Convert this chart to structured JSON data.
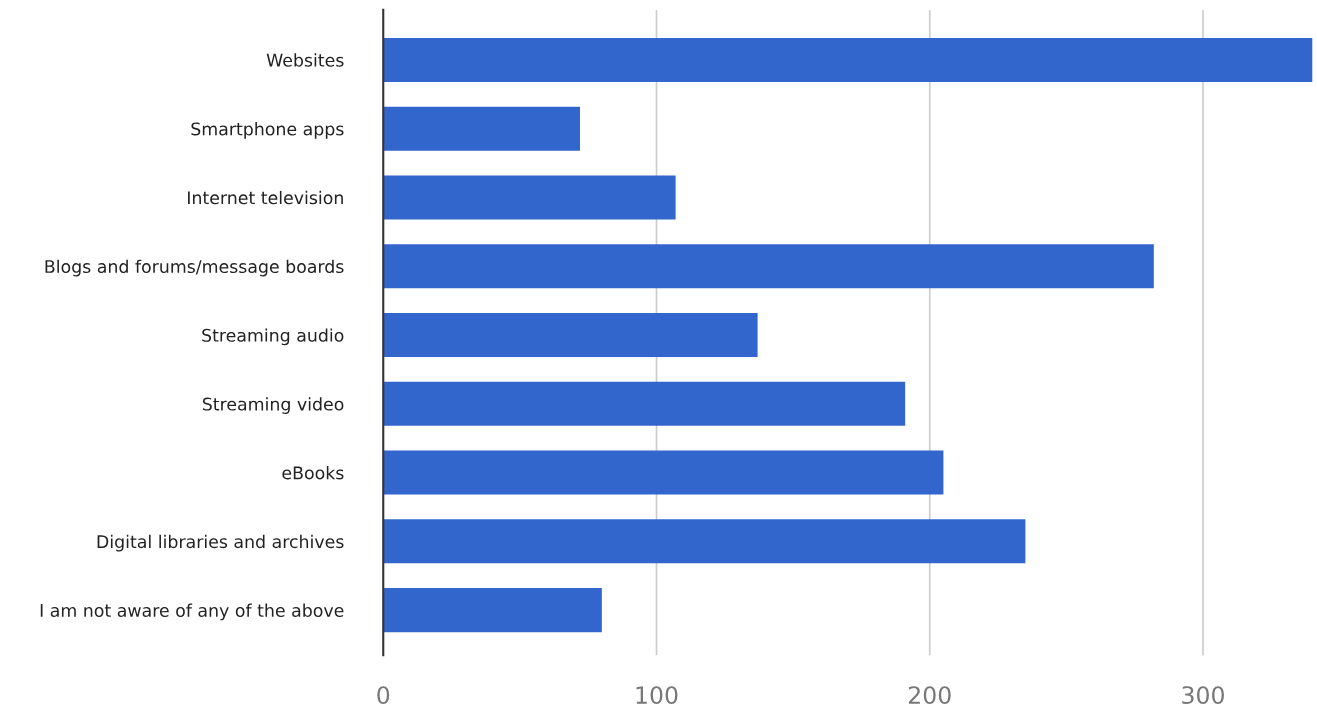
{
  "chart_data": {
    "type": "bar",
    "orientation": "horizontal",
    "categories": [
      "Websites",
      "Smartphone apps",
      "Internet television",
      "Blogs and forums/message boards",
      "Streaming audio",
      "Streaming video",
      "eBooks",
      "Digital libraries and archives",
      "I am not aware of any of the above"
    ],
    "values": [
      340,
      72,
      107,
      282,
      137,
      191,
      205,
      235,
      80
    ],
    "color": "#3366cc",
    "xlim": [
      0,
      341
    ],
    "xticks": [
      0,
      100,
      200,
      300
    ],
    "grid": "x"
  }
}
